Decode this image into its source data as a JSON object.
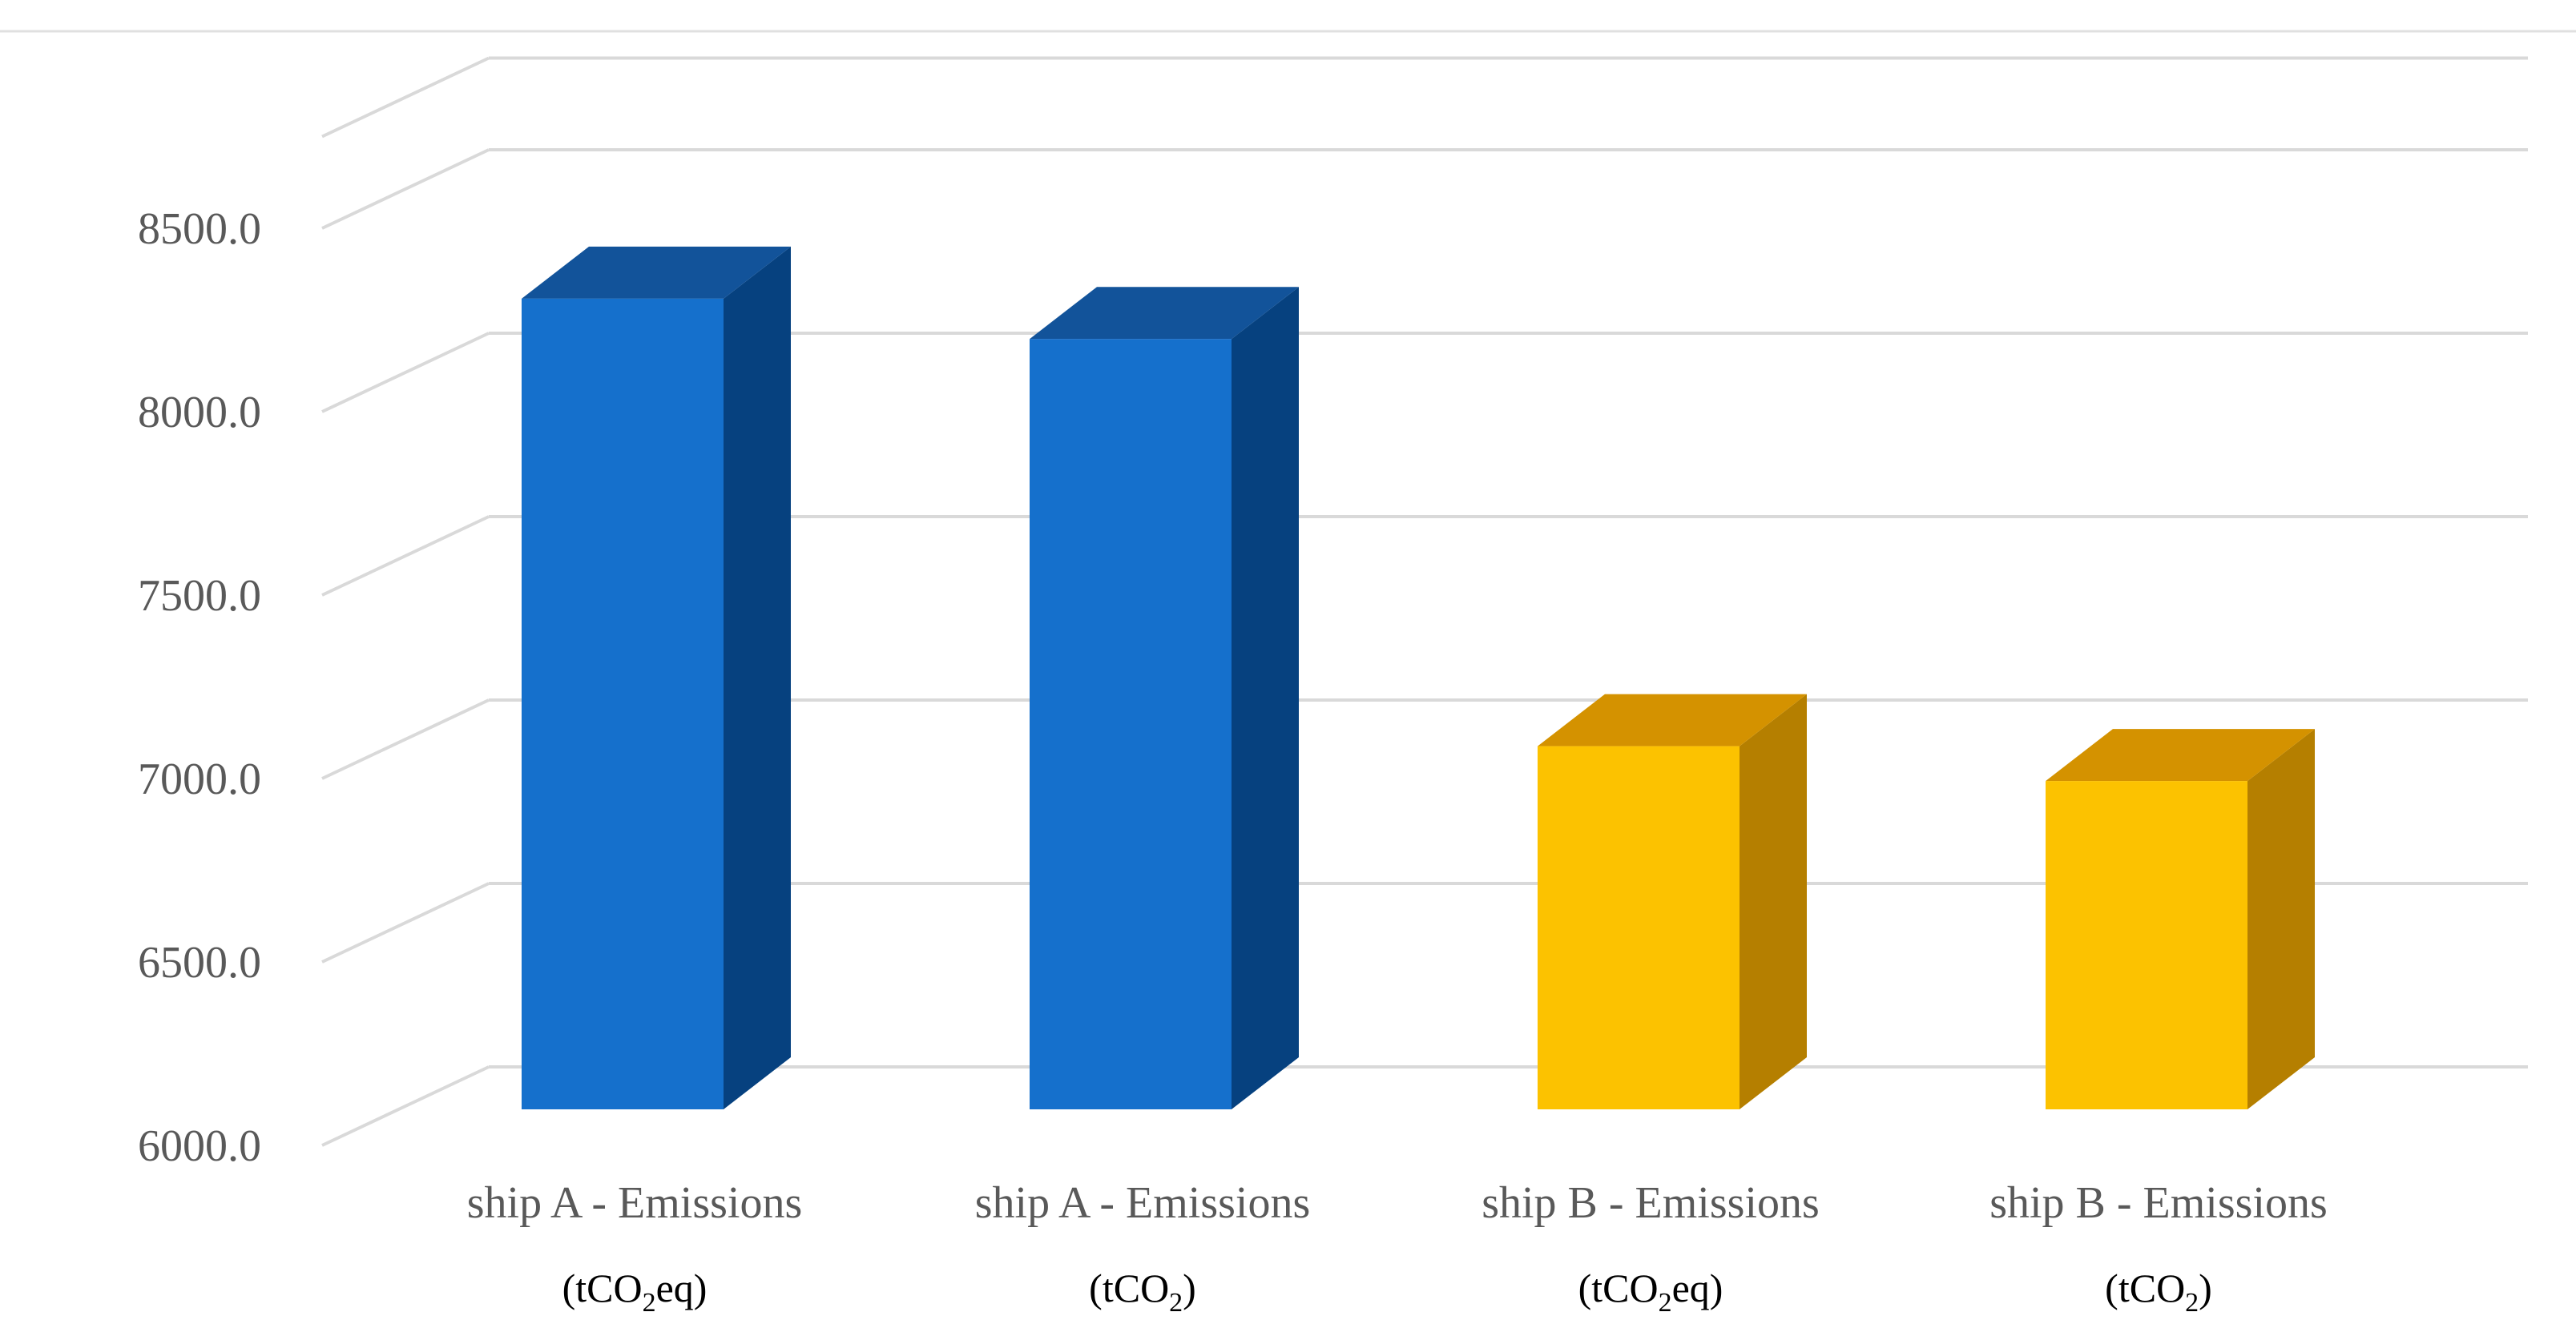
{
  "chart_data": {
    "type": "bar",
    "style": "3d-column",
    "title": "",
    "xlabel": "",
    "ylabel": "",
    "ylim": [
      6000,
      8750
    ],
    "yticks": [
      6000,
      6500,
      7000,
      7500,
      8000,
      8500
    ],
    "ytick_labels": [
      "6000.0",
      "6500.0",
      "7000.0",
      "7500.0",
      "8000.0",
      "8500.0"
    ],
    "grid": true,
    "legend": "none",
    "categories": [
      {
        "label": "ship A - Emissions",
        "unit_prefix": "(tCO",
        "unit_sub": "2",
        "unit_suffix": "eq)"
      },
      {
        "label": "ship A - Emissions",
        "unit_prefix": "(tCO",
        "unit_sub": "2",
        "unit_suffix": ")"
      },
      {
        "label": "ship B - Emissions",
        "unit_prefix": "(tCO",
        "unit_sub": "2",
        "unit_suffix": "eq)"
      },
      {
        "label": "ship B - Emissions",
        "unit_prefix": "(tCO",
        "unit_sub": "2",
        "unit_suffix": ")"
      }
    ],
    "values": [
      8210,
      8100,
      6990,
      6895
    ],
    "colors": {
      "ship_a": {
        "front": "#1570CC",
        "top": "#12539A",
        "side": "#06417F"
      },
      "ship_b": {
        "front": "#FCC200",
        "top": "#D49200",
        "side": "#B57F00"
      },
      "grid": "#D9D9D9",
      "border": "#E0E0E0"
    }
  }
}
